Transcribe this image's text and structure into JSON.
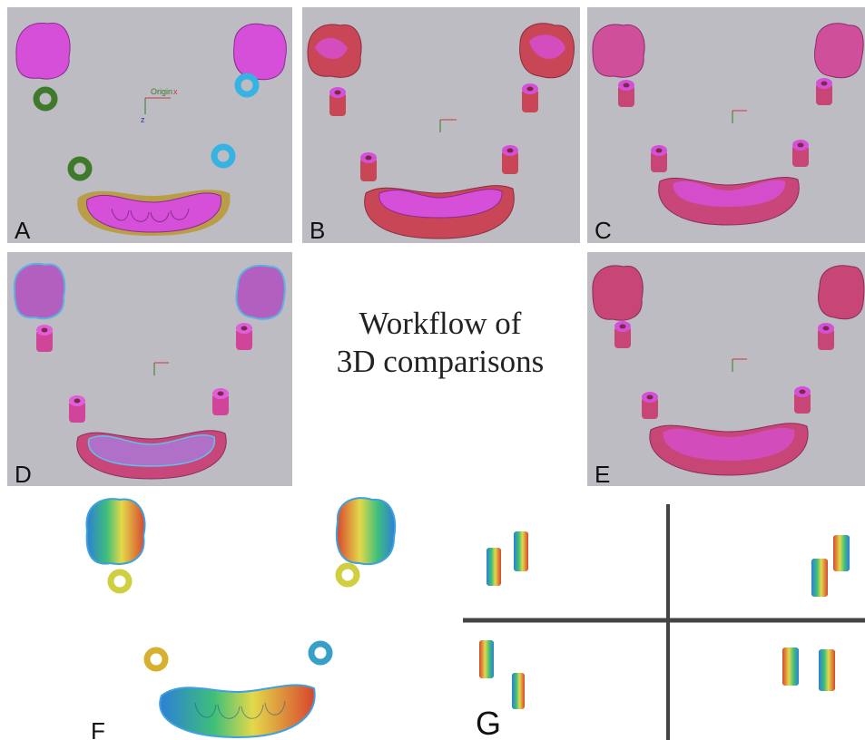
{
  "title": {
    "line1": "Workflow of",
    "line2": "3D comparisons"
  },
  "panels": [
    {
      "label": "A",
      "axis_origin": "Origin",
      "axis_x": "x",
      "axis_z": "z"
    },
    {
      "label": "B"
    },
    {
      "label": "C"
    },
    {
      "label": "D"
    },
    {
      "label": "E"
    },
    {
      "label": "F"
    },
    {
      "label": "G"
    }
  ],
  "colors": {
    "panel_background": "#bcbcc2",
    "magenta_model": "#d64fd8",
    "red_model": "#c84656",
    "gold_scan": "#b89a3a",
    "green_scanbody": "#3f7a2c",
    "cyan_scanbody": "#36b3e3",
    "heatmap_low": "#2c7fd6",
    "heatmap_mid": "#e3d94a",
    "heatmap_high": "#d8452e"
  }
}
